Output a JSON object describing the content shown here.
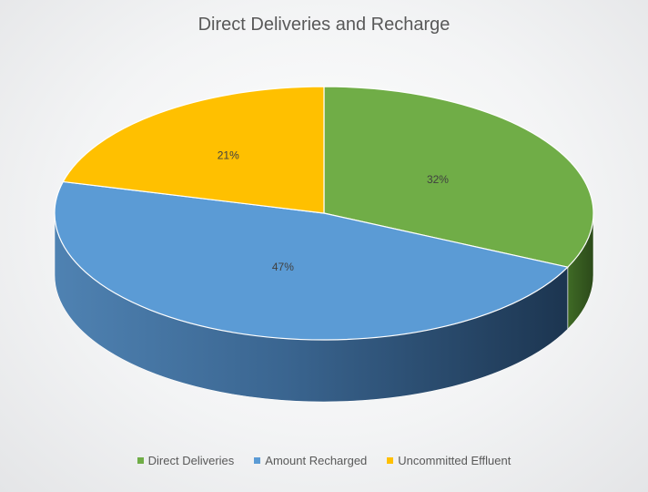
{
  "chart_data": {
    "type": "pie",
    "title": "Direct Deliveries and Recharge",
    "categories": [
      "Direct Deliveries",
      "Amount Recharged",
      "Uncommitted Effluent"
    ],
    "values": [
      32,
      47,
      21
    ],
    "data_labels": [
      "32%",
      "47%",
      "21%"
    ],
    "colors": [
      "#70ad47",
      "#5b9bd5",
      "#ffc000"
    ],
    "legend_position": "bottom",
    "style": "3d-pie"
  }
}
